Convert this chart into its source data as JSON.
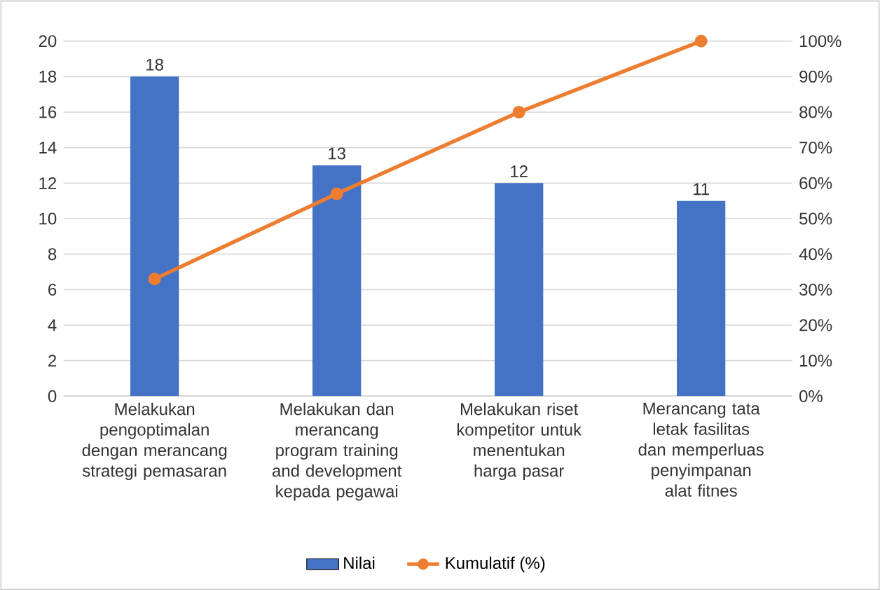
{
  "chart_data": {
    "type": "bar",
    "categories": [
      "Melakukan pengoptimalan dengan merancang strategi pemasaran",
      "Melakukan dan merancang program training and development kepada pegawai",
      "Melakukan riset kompetitor untuk menentukan harga pasar",
      "Merancang tata letak fasilitas dan memperluas penyimpanan alat fitnes"
    ],
    "series": [
      {
        "name": "Nilai",
        "color": "#4472c4",
        "values": [
          18,
          13,
          12,
          11
        ],
        "value_labels": [
          "18",
          "13",
          "12",
          "11"
        ]
      },
      {
        "name": "Kumulatif (%)",
        "type": "line",
        "axis": "y2",
        "color": "#ed7d31",
        "marker": "circle",
        "values": [
          33,
          57,
          80,
          100
        ]
      }
    ],
    "ylim": [
      0,
      20
    ],
    "yticks": [
      0,
      2,
      4,
      6,
      8,
      10,
      12,
      14,
      16,
      18,
      20
    ],
    "y2lim": [
      0,
      100
    ],
    "y2ticks": [
      {
        "value": 0,
        "label": "0%"
      },
      {
        "value": 10,
        "label": "10%"
      },
      {
        "value": 20,
        "label": "20%"
      },
      {
        "value": 30,
        "label": "30%"
      },
      {
        "value": 40,
        "label": "40%"
      },
      {
        "value": 50,
        "label": "50%"
      },
      {
        "value": 60,
        "label": "60%"
      },
      {
        "value": 70,
        "label": "70%"
      },
      {
        "value": 80,
        "label": "80%"
      },
      {
        "value": 90,
        "label": "90%"
      },
      {
        "value": 100,
        "label": "100%"
      }
    ],
    "grid": "y",
    "legend": "bottom"
  }
}
